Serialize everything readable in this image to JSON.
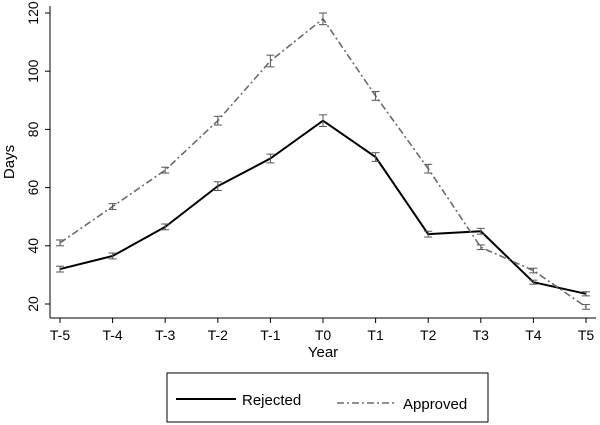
{
  "chart_data": {
    "type": "line",
    "categories": [
      "T-5",
      "T-4",
      "T-3",
      "T-2",
      "T-1",
      "T0",
      "T1",
      "T2",
      "T3",
      "T4",
      "T5"
    ],
    "xlabel": "Year",
    "ylabel": "Days",
    "ylim": [
      20,
      120
    ],
    "yticks": [
      20,
      40,
      60,
      80,
      100,
      120
    ],
    "grid": false,
    "legend_position": "bottom",
    "series": [
      {
        "name": "Rejected",
        "style": "solid",
        "color": "#000000",
        "values": [
          32,
          36.5,
          46.5,
          60.5,
          70,
          83,
          70.5,
          44,
          45,
          27.5,
          23.5
        ],
        "error": [
          1,
          1,
          1,
          1.5,
          1.5,
          2,
          1.5,
          1,
          1,
          0.7,
          0.7
        ]
      },
      {
        "name": "Approved",
        "style": "dashdot",
        "color": "#6b6b6b",
        "values": [
          41,
          53.5,
          66,
          83,
          103.5,
          118,
          91.5,
          66.5,
          39.5,
          31.5,
          19
        ],
        "error": [
          1,
          1,
          1,
          1.5,
          2,
          2,
          1.5,
          1.5,
          0.8,
          0.8,
          0.8
        ]
      }
    ]
  }
}
